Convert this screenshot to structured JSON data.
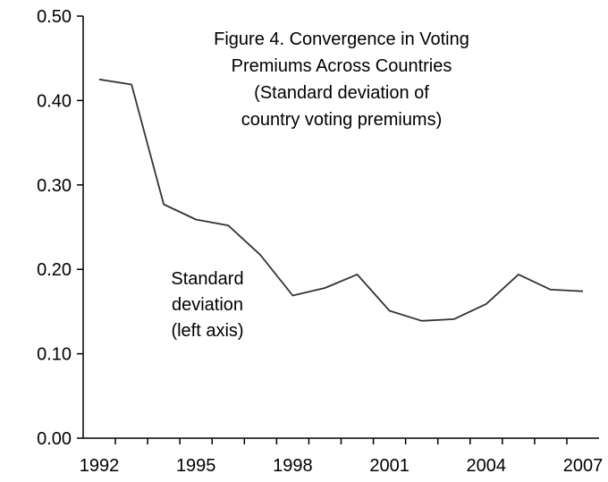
{
  "chart_data": {
    "type": "line",
    "title_lines": [
      "Figure 4. Convergence in Voting",
      "Premiums Across Countries",
      "(Standard deviation of",
      "country voting premiums)"
    ],
    "annotation_lines": [
      "Standard",
      "deviation",
      "(left axis)"
    ],
    "xlabel": "",
    "ylabel": "",
    "x": [
      1992,
      1993,
      1994,
      1995,
      1996,
      1997,
      1998,
      1999,
      2000,
      2001,
      2002,
      2003,
      2004,
      2005,
      2006,
      2007
    ],
    "series": [
      {
        "values": [
          0.425,
          0.419,
          0.277,
          0.259,
          0.252,
          0.217,
          0.169,
          0.178,
          0.194,
          0.151,
          0.139,
          0.141,
          0.159,
          0.194,
          0.176,
          0.174
        ]
      }
    ],
    "xtick_labels": [
      "1992",
      "1995",
      "1998",
      "2001",
      "2004",
      "2007"
    ],
    "xtick_values": [
      1992,
      1995,
      1998,
      2001,
      2004,
      2007
    ],
    "ytick_labels": [
      "0.00",
      "0.10",
      "0.20",
      "0.30",
      "0.40",
      "0.50"
    ],
    "ytick_values": [
      0.0,
      0.1,
      0.2,
      0.3,
      0.4,
      0.5
    ],
    "ylim": [
      0.0,
      0.5
    ],
    "grid": false,
    "legend": "none",
    "colors": {
      "line": "#333333",
      "axis": "#000000"
    }
  }
}
